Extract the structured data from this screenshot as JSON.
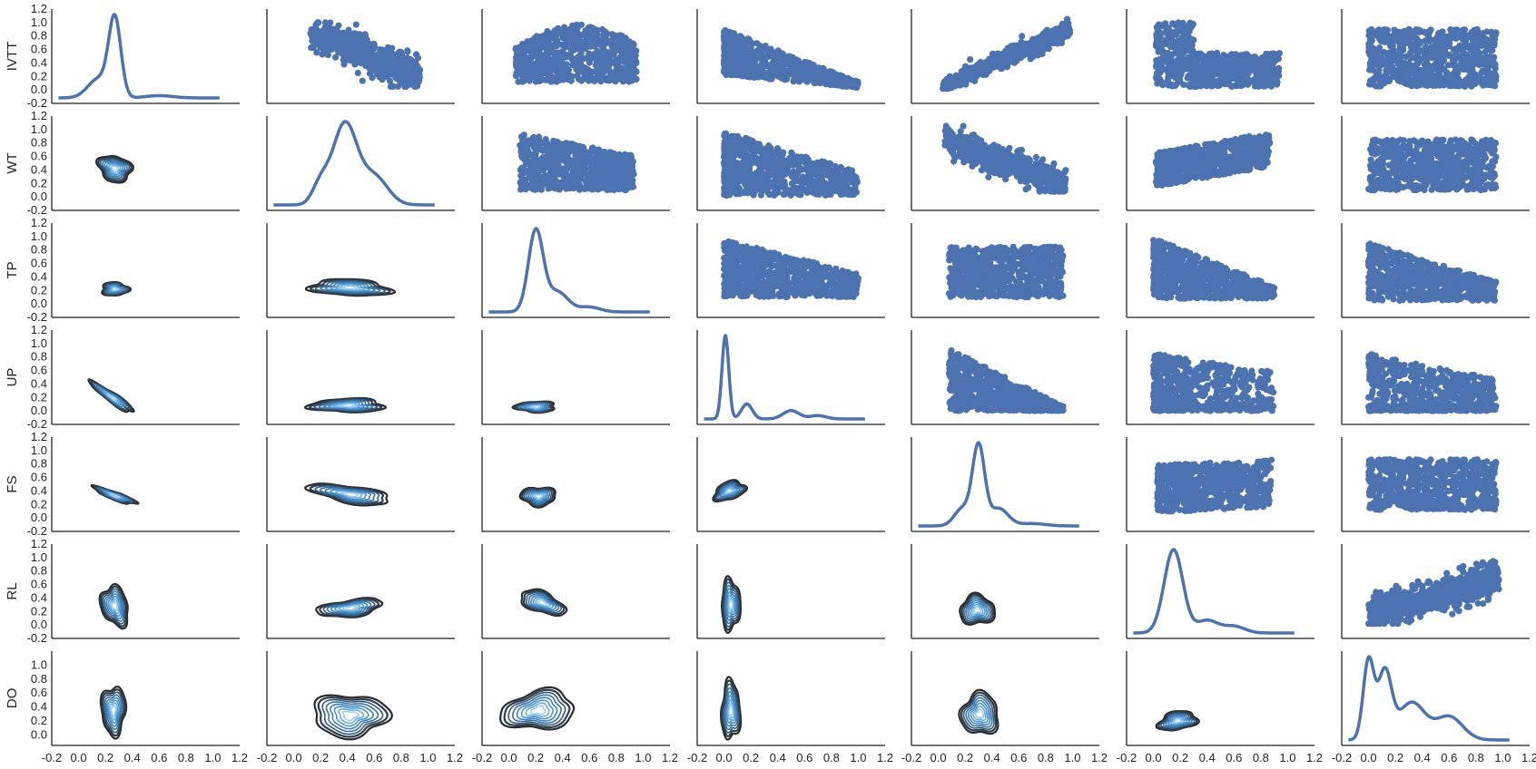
{
  "chart_data": {
    "type": "pairgrid",
    "variables": [
      "IVTT",
      "WT",
      "TP",
      "UP",
      "FS",
      "RL",
      "DO"
    ],
    "upper": "scatter",
    "diagonal": "kde-line",
    "lower": "kde-contour",
    "xlim": [
      -0.2,
      1.2
    ],
    "ylim": [
      -0.2,
      1.2
    ],
    "x_ticks": [
      "-0.2",
      "0.0",
      "0.2",
      "0.4",
      "0.6",
      "0.8",
      "1.0",
      "1.2"
    ],
    "y_ticks": [
      "-0.2",
      "0.0",
      "0.2",
      "0.4",
      "0.6",
      "0.8",
      "1.0",
      "1.2"
    ],
    "last_row_y_ticks": [
      "0.0",
      "0.2",
      "0.4",
      "0.6",
      "0.8",
      "1.0"
    ],
    "colors": {
      "points": "#4c72b0",
      "line": "#4c72b0",
      "contour_outer": "#2b2b2b",
      "contour_inner": "#3a8fd0"
    },
    "grid": false,
    "legend": "none",
    "diagonal_density": [
      {
        "variable": "IVTT",
        "peaks": [
          {
            "x": 0.27,
            "sd": 0.045,
            "w": 1.0
          },
          {
            "x": 0.15,
            "sd": 0.08,
            "w": 0.25
          },
          {
            "x": 0.6,
            "sd": 0.1,
            "w": 0.03
          }
        ]
      },
      {
        "variable": "WT",
        "peaks": [
          {
            "x": 0.38,
            "sd": 0.09,
            "w": 1.0
          },
          {
            "x": 0.6,
            "sd": 0.1,
            "w": 0.35
          },
          {
            "x": 0.2,
            "sd": 0.06,
            "w": 0.25
          }
        ]
      },
      {
        "variable": "TP",
        "peaks": [
          {
            "x": 0.2,
            "sd": 0.055,
            "w": 1.0
          },
          {
            "x": 0.36,
            "sd": 0.08,
            "w": 0.25
          },
          {
            "x": 0.6,
            "sd": 0.08,
            "w": 0.06
          }
        ]
      },
      {
        "variable": "UP",
        "peaks": [
          {
            "x": 0.01,
            "sd": 0.025,
            "w": 1.0
          },
          {
            "x": 0.17,
            "sd": 0.04,
            "w": 0.18
          },
          {
            "x": 0.5,
            "sd": 0.06,
            "w": 0.1
          },
          {
            "x": 0.7,
            "sd": 0.06,
            "w": 0.04
          }
        ]
      },
      {
        "variable": "FS",
        "peaks": [
          {
            "x": 0.3,
            "sd": 0.045,
            "w": 1.0
          },
          {
            "x": 0.18,
            "sd": 0.06,
            "w": 0.22
          },
          {
            "x": 0.45,
            "sd": 0.07,
            "w": 0.22
          },
          {
            "x": 0.7,
            "sd": 0.1,
            "w": 0.03
          }
        ]
      },
      {
        "variable": "RL",
        "peaks": [
          {
            "x": 0.15,
            "sd": 0.07,
            "w": 1.0
          },
          {
            "x": 0.4,
            "sd": 0.08,
            "w": 0.15
          },
          {
            "x": 0.6,
            "sd": 0.08,
            "w": 0.08
          }
        ]
      },
      {
        "variable": "DO",
        "peaks": [
          {
            "x": 0.0,
            "sd": 0.04,
            "w": 0.95
          },
          {
            "x": 0.12,
            "sd": 0.05,
            "w": 0.8
          },
          {
            "x": 0.32,
            "sd": 0.1,
            "w": 0.45
          },
          {
            "x": 0.6,
            "sd": 0.1,
            "w": 0.28
          }
        ]
      }
    ]
  }
}
